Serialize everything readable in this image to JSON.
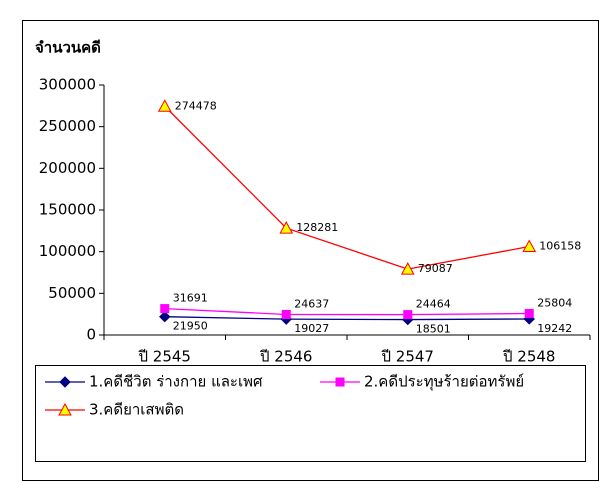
{
  "chart_data": {
    "type": "line",
    "y_label": "จำนวนคดี",
    "categories": [
      "ปี 2545",
      "ปี 2546",
      "ปี 2547",
      "ปี 2548"
    ],
    "series": [
      {
        "name": "1.คดีชีวิต ร่างกาย และเพศ",
        "color": "#000080",
        "marker": "diamond",
        "values": [
          21950,
          19027,
          18501,
          19242
        ]
      },
      {
        "name": "2.คดีประทุษร้ายต่อทรัพย์",
        "color": "#ff00ff",
        "marker": "square",
        "values": [
          31691,
          24637,
          24464,
          25804
        ]
      },
      {
        "name": "3.คดียาเสพติด",
        "color": "#ff0000",
        "marker": "triangle",
        "values": [
          274478,
          128281,
          79087,
          106158
        ]
      }
    ],
    "ylim": [
      0,
      300000
    ],
    "yticks": [
      0,
      50000,
      100000,
      150000,
      200000,
      250000,
      300000
    ],
    "grid": false
  }
}
